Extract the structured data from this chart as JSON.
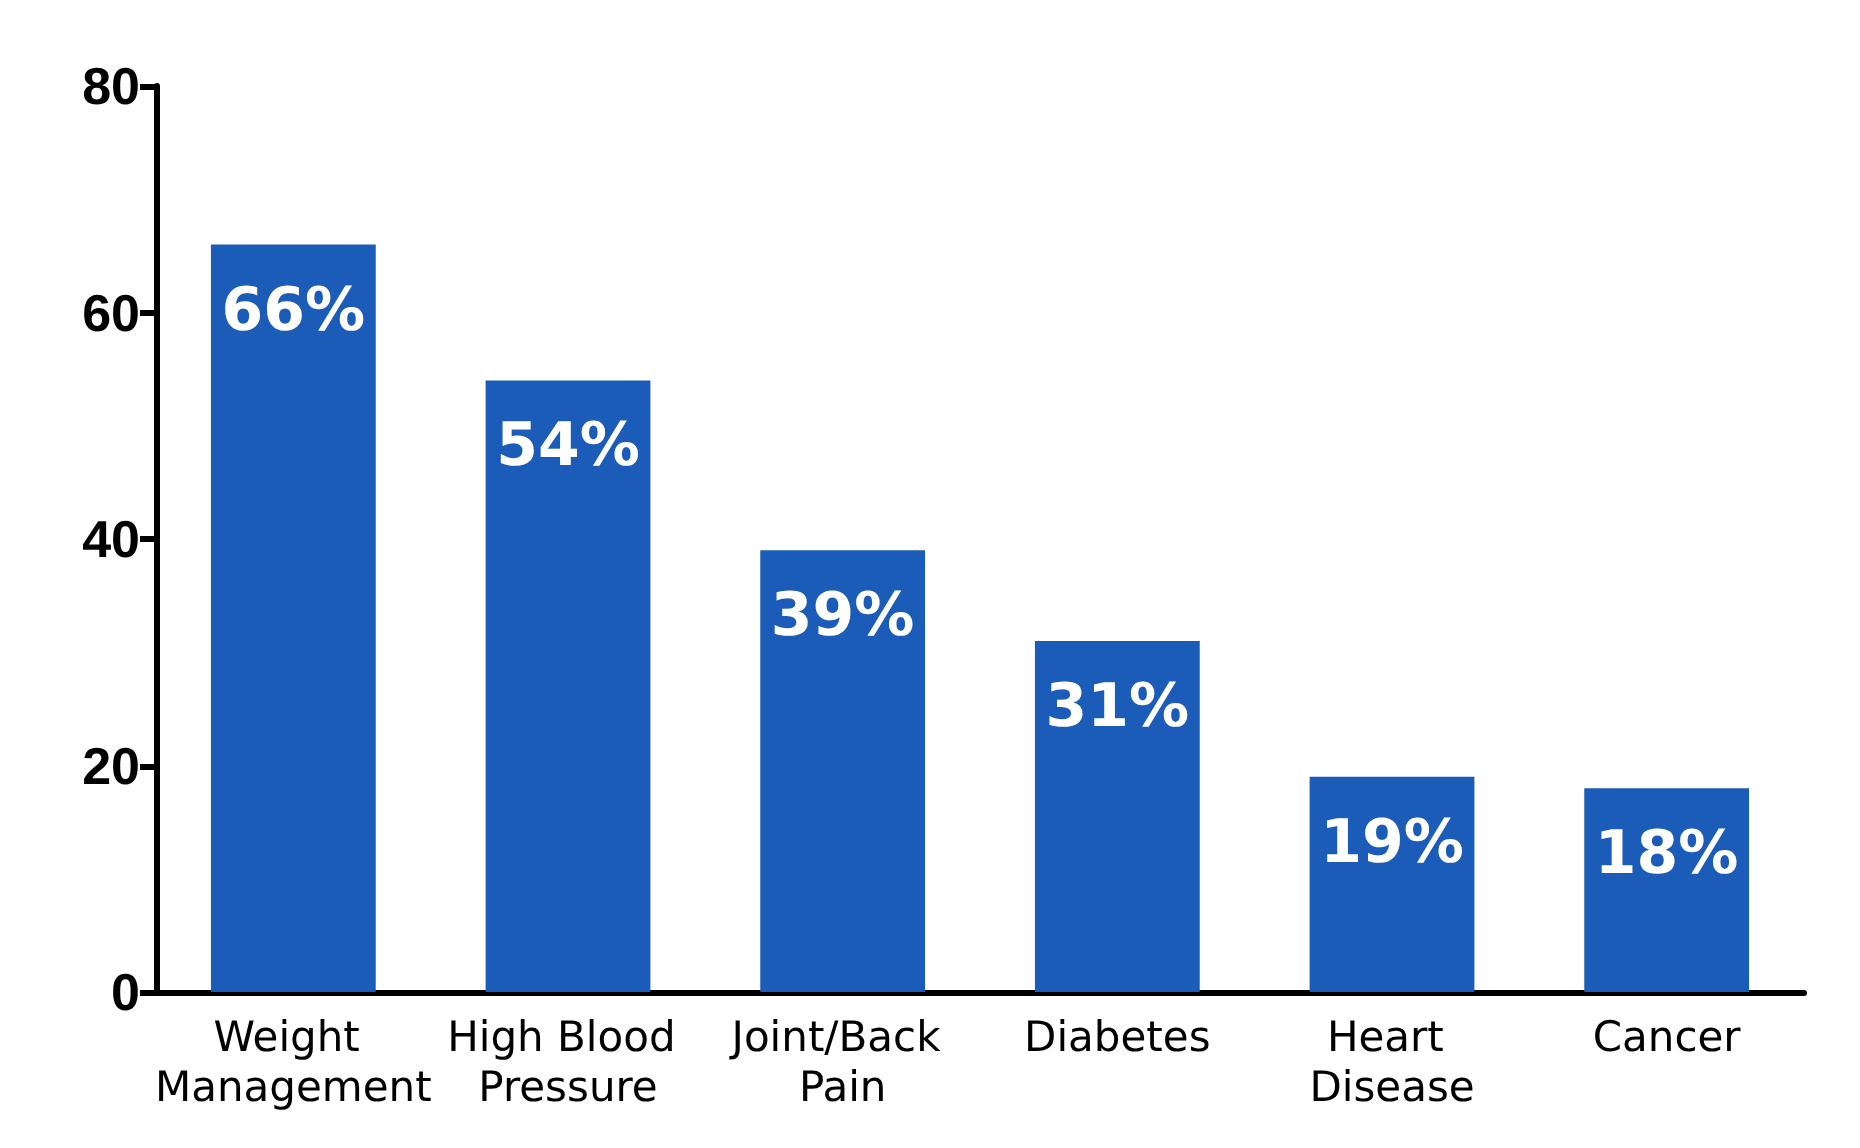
{
  "chart_data": {
    "type": "bar",
    "categories": [
      "Weight Management",
      "High Blood Pressure",
      "Joint/Back Pain",
      "Diabetes",
      "Heart Disease",
      "Cancer"
    ],
    "values": [
      66,
      54,
      39,
      31,
      19,
      18
    ],
    "value_labels": [
      "66%",
      "54%",
      "39%",
      "31%",
      "19%",
      "18%"
    ],
    "color": "#1a5cb8",
    "ylim": [
      0,
      80
    ],
    "yticks": [
      0,
      20,
      40,
      60,
      80
    ],
    "grid": false
  }
}
